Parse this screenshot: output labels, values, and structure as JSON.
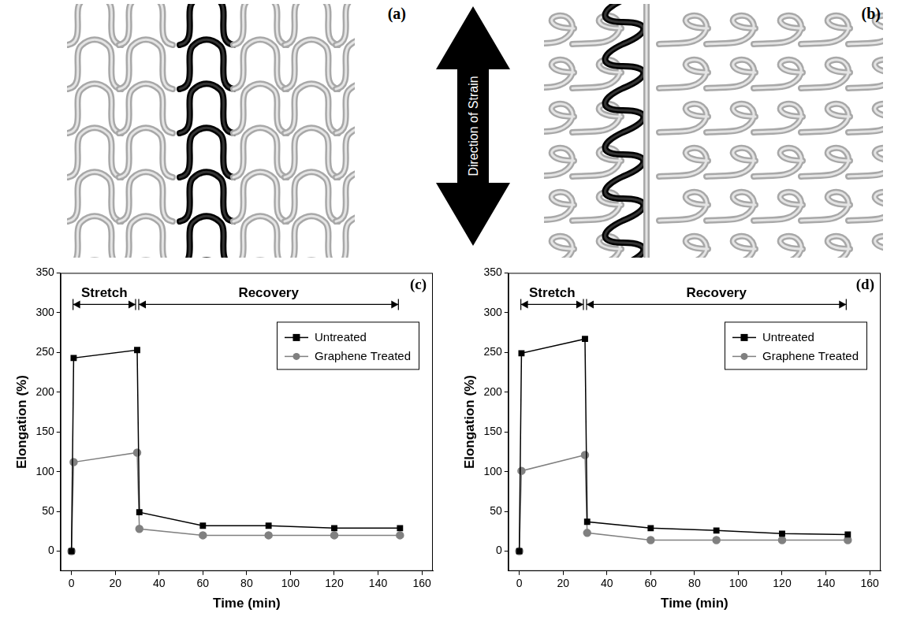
{
  "diagrams": {
    "panels": [
      {
        "label": "(a)"
      },
      {
        "label": "(b)"
      }
    ],
    "arrow_label": "Direction of Strain"
  },
  "chart_data": [
    {
      "type": "line",
      "x_label": "Time (min)",
      "y_label": "Elongation (%)",
      "x": [
        0,
        1,
        30,
        31,
        60,
        90,
        120,
        150
      ],
      "series": [
        {
          "name": "Untreated",
          "color": "#000000",
          "marker": "square",
          "line_style": "solid",
          "values": [
            0,
            243,
            253,
            49,
            32,
            32,
            29,
            29
          ]
        },
        {
          "name": "Graphene Treated",
          "color": "#808080",
          "marker": "circle",
          "line_style": "solid",
          "values": [
            0,
            112,
            124,
            28,
            20,
            20,
            20,
            20
          ]
        }
      ],
      "xlim": [
        -5,
        165
      ],
      "xticks": [
        0,
        20,
        40,
        60,
        80,
        100,
        120,
        140,
        160
      ],
      "ylim": [
        -25,
        350
      ],
      "yticks": [
        0,
        50,
        100,
        150,
        200,
        250,
        300,
        350
      ],
      "grid": false,
      "legend": "upper right",
      "annotations": [
        {
          "text": "(c)"
        },
        {
          "text": "Stretch",
          "x": [
            0,
            30
          ]
        },
        {
          "text": "Recovery",
          "x": [
            30,
            150
          ]
        }
      ]
    },
    {
      "type": "line",
      "x_label": "Time (min)",
      "y_label": "Elongation (%)",
      "x": [
        0,
        1,
        30,
        31,
        60,
        90,
        120,
        150
      ],
      "series": [
        {
          "name": "Untreated",
          "color": "#000000",
          "marker": "square",
          "line_style": "solid",
          "values": [
            0,
            249,
            267,
            37,
            29,
            26,
            22,
            21
          ]
        },
        {
          "name": "Graphene Treated",
          "color": "#808080",
          "marker": "circle",
          "line_style": "solid",
          "values": [
            0,
            101,
            121,
            23,
            14,
            14,
            14,
            14
          ]
        }
      ],
      "xlim": [
        -5,
        165
      ],
      "xticks": [
        0,
        20,
        40,
        60,
        80,
        100,
        120,
        140,
        160
      ],
      "ylim": [
        -25,
        350
      ],
      "yticks": [
        0,
        50,
        100,
        150,
        200,
        250,
        300,
        350
      ],
      "grid": false,
      "legend": "upper right",
      "annotations": [
        {
          "text": "(d)"
        },
        {
          "text": "Stretch",
          "x": [
            0,
            30
          ]
        },
        {
          "text": "Recovery",
          "x": [
            30,
            150
          ]
        }
      ]
    }
  ]
}
